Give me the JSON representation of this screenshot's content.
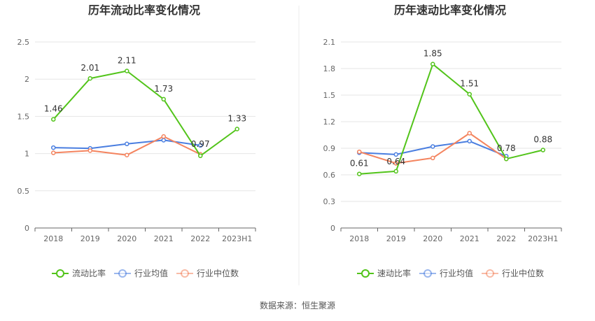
{
  "colors": {
    "primary": "#52c41a",
    "industry_avg": "#4a7ee0",
    "industry_median": "#f4845f",
    "grid": "#e6e6e6",
    "axis": "#666666",
    "text": "#666666",
    "title": "#333333",
    "divider": "#eeeeee"
  },
  "source": "数据来源：恒生聚源",
  "chart_data": [
    {
      "type": "line",
      "title": "历年流动比率变化情况",
      "categories": [
        "2018",
        "2019",
        "2020",
        "2021",
        "2022",
        "2023H1"
      ],
      "ylim": [
        0,
        2.5
      ],
      "yticks": [
        "0",
        "0.5",
        "1",
        "1.5",
        "2",
        "2.5"
      ],
      "series": [
        {
          "name": "流动比率",
          "values": [
            1.46,
            2.01,
            2.11,
            1.73,
            0.97,
            1.33
          ],
          "labels": [
            "1.46",
            "2.01",
            "2.11",
            "1.73",
            "0.97",
            "1.33"
          ]
        },
        {
          "name": "行业均值",
          "values": [
            1.08,
            1.07,
            1.13,
            1.18,
            1.11,
            null
          ]
        },
        {
          "name": "行业中位数",
          "values": [
            1.01,
            1.04,
            0.98,
            1.23,
            0.99,
            null
          ]
        }
      ],
      "legend_position": "bottom-center",
      "grid": true
    },
    {
      "type": "line",
      "title": "历年速动比率变化情况",
      "categories": [
        "2018",
        "2019",
        "2020",
        "2021",
        "2022",
        "2023H1"
      ],
      "ylim": [
        0,
        2.1
      ],
      "yticks": [
        "0",
        "0.3",
        "0.6",
        "0.9",
        "1.2",
        "1.5",
        "1.8",
        "2.1"
      ],
      "series": [
        {
          "name": "速动比率",
          "values": [
            0.61,
            0.64,
            1.85,
            1.51,
            0.78,
            0.88
          ],
          "labels": [
            "0.61",
            "0.64",
            "1.85",
            "1.51",
            "0.78",
            "0.88"
          ]
        },
        {
          "name": "行业均值",
          "values": [
            0.85,
            0.83,
            0.92,
            0.98,
            0.81,
            null
          ]
        },
        {
          "name": "行业中位数",
          "values": [
            0.86,
            0.73,
            0.79,
            1.07,
            0.78,
            null
          ]
        }
      ],
      "legend_position": "bottom-center",
      "grid": true
    }
  ]
}
